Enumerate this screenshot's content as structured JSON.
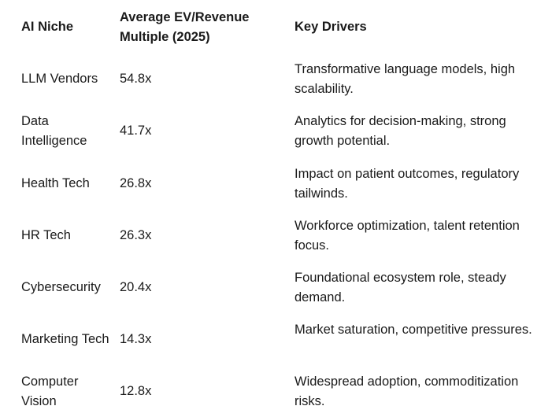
{
  "table": {
    "headers": {
      "niche": "AI Niche",
      "multiple": "Average EV/Revenue Multiple (2025)",
      "drivers": "Key Drivers"
    },
    "rows": [
      {
        "niche": "LLM Vendors",
        "multiple": "54.8x",
        "drivers": "Transformative language models, high scalability."
      },
      {
        "niche": "Data Intelligence",
        "multiple": "41.7x",
        "drivers": "Analytics for decision-making, strong growth potential."
      },
      {
        "niche": "Health Tech",
        "multiple": "26.8x",
        "drivers": "Impact on patient outcomes, regulatory tailwinds."
      },
      {
        "niche": "HR Tech",
        "multiple": "26.3x",
        "drivers": "Workforce optimization, talent retention focus."
      },
      {
        "niche": "Cybersecurity",
        "multiple": "20.4x",
        "drivers": "Foundational ecosystem role, steady demand."
      },
      {
        "niche": "Marketing Tech",
        "multiple": "14.3x",
        "drivers": "Market saturation, competitive pressures."
      },
      {
        "niche": "Computer Vision",
        "multiple": "12.8x",
        "drivers": "Widespread adoption, commoditization risks."
      }
    ]
  }
}
